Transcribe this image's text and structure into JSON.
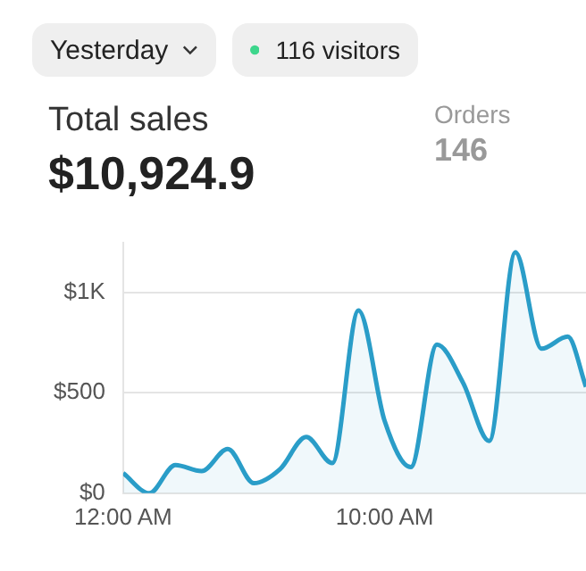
{
  "chart_data": {
    "type": "area",
    "title": "Total sales",
    "subtitle": "$10,924.9",
    "annotations": [
      "Yesterday",
      "116 visitors",
      "Orders",
      "146"
    ],
    "x": [
      0,
      1,
      2,
      3,
      4,
      5,
      6,
      7,
      8,
      9,
      10,
      11,
      12,
      13,
      14,
      15,
      16,
      17,
      17.7
    ],
    "series": [
      {
        "color": "#2a9dc8",
        "values": [
          100,
          0,
          140,
          110,
          220,
          50,
          120,
          280,
          150,
          910,
          360,
          130,
          740,
          550,
          260,
          1200,
          720,
          780,
          530
        ]
      }
    ],
    "xlim": [
      0,
      17.7
    ],
    "xticks": [
      {
        "value": 0,
        "label": "12:00 AM"
      },
      {
        "value": 10,
        "label": "10:00 AM"
      }
    ],
    "ylim": [
      0,
      1250
    ],
    "yticks": [
      {
        "value": 0,
        "label": "$0"
      },
      {
        "value": 500,
        "label": "$500"
      },
      {
        "value": 1000,
        "label": "$1K"
      }
    ],
    "grid": "y",
    "legend": false,
    "marker": "none",
    "line_style": "solid"
  }
}
